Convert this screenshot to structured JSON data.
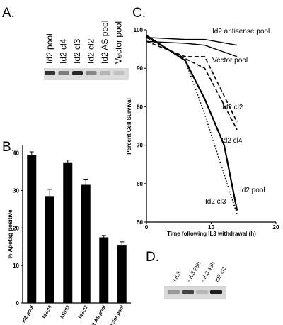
{
  "panels": {
    "A": {
      "label": "A.",
      "lanes": [
        "Id2 pool",
        "Id2 cl4",
        "Id2 cl3",
        "Id2 cl2",
        "Id2 AS pool",
        "Vector pool"
      ],
      "band_intensity": [
        0.85,
        0.45,
        0.9,
        0.4,
        0.15,
        0.1
      ]
    },
    "B": {
      "label": "B.",
      "chart_data": {
        "type": "bar",
        "categories": [
          "Id2 pool",
          "Id2cl4",
          "Id2cl3",
          "Id2cl2",
          "Id2 AS pool",
          "Vector pool"
        ],
        "values": [
          39.5,
          28.5,
          37.5,
          31.5,
          17.5,
          15.5
        ],
        "errors": [
          0.8,
          1.8,
          0.6,
          1.5,
          0.5,
          0.8
        ],
        "ylabel": "% Apotag positive",
        "ylim": [
          0,
          42
        ],
        "yticks": [
          "0",
          "10",
          "20",
          "30",
          "40"
        ],
        "bar_color": "#000000"
      }
    },
    "C": {
      "label": "C.",
      "chart_data": {
        "type": "line",
        "xlabel": "Time following IL3 withdrawal (h)",
        "ylabel": "Percent Cell Survival",
        "xlim": [
          0,
          20
        ],
        "ylim": [
          50,
          100
        ],
        "xticks": [
          "0",
          "10",
          "20"
        ],
        "yticks": [
          "50",
          "60",
          "70",
          "80",
          "90",
          "100"
        ],
        "series": [
          {
            "name": "Id2 antisense pool",
            "style": "solid",
            "x": [
              0,
              6,
              9,
              14
            ],
            "y": [
              98,
              97.5,
              97.5,
              96
            ]
          },
          {
            "name": "Vector pool",
            "style": "solid",
            "x": [
              0,
              6,
              9,
              14
            ],
            "y": [
              97,
              96.5,
              96,
              93
            ]
          },
          {
            "name": "Id2 cl2",
            "style": "dashed",
            "x": [
              0,
              6,
              9,
              14
            ],
            "y": [
              97,
              93,
              93,
              76
            ]
          },
          {
            "name": "Id2 cl4",
            "style": "dashed",
            "x": [
              0,
              6,
              9,
              14
            ],
            "y": [
              98,
              92.5,
              90,
              74
            ]
          },
          {
            "name": "Id2 pool",
            "style": "solid-bold",
            "x": [
              0,
              6,
              9,
              12,
              14
            ],
            "y": [
              98.5,
              92,
              82,
              70,
              53
            ]
          },
          {
            "name": "Id2 cl3",
            "style": "dotted",
            "x": [
              0,
              6,
              9,
              14
            ],
            "y": [
              98.5,
              92,
              78,
              52
            ]
          }
        ]
      }
    },
    "D": {
      "label": "D.",
      "lanes": [
        "+IL3",
        "- IL3  25h",
        "- IL3  43h",
        "Id2 cl2"
      ],
      "band_intensity": [
        0.3,
        0.75,
        0.15,
        0.95
      ]
    }
  },
  "colors": {
    "ink": "#000000",
    "blot_bg": "#d8d8d8",
    "band": "#1a1a1a"
  }
}
